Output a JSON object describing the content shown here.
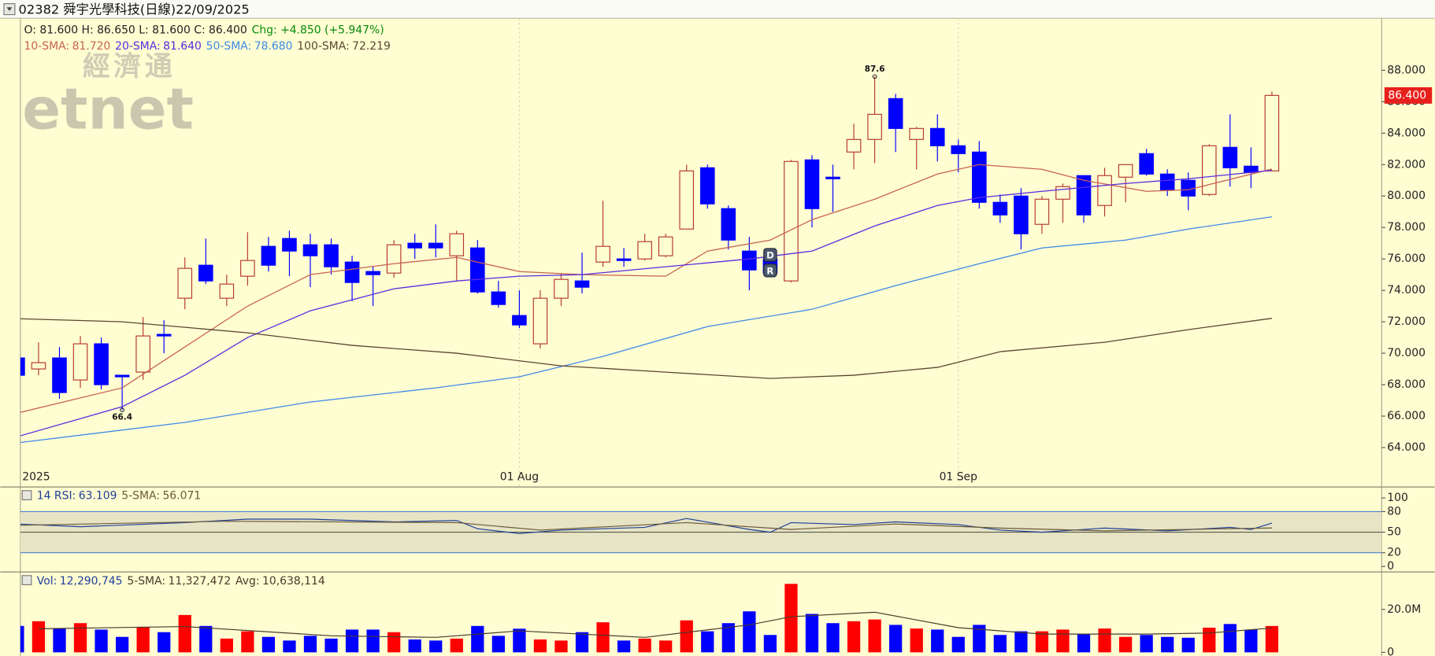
{
  "chart_data": [
    {
      "type": "candlestick",
      "title": "02382 舜宇光學科技(日線)22/09/2025",
      "ohlc_text": "O: 81.600 H: 86.650 L: 81.600 C: 86.400",
      "change_text": "Chg: +4.850 (+5.947%)",
      "change_color": "#0a8a0a",
      "watermark": [
        "經濟通",
        "etnet"
      ],
      "categories": [
        "2025",
        null,
        null,
        null,
        null,
        null,
        null,
        null,
        null,
        null,
        null,
        null,
        null,
        null,
        null,
        null,
        null,
        null,
        null,
        null,
        null,
        null,
        null,
        null,
        "01 Aug",
        null,
        null,
        null,
        null,
        null,
        null,
        null,
        null,
        null,
        null,
        null,
        null,
        null,
        null,
        null,
        null,
        null,
        null,
        null,
        null,
        "01 Sep",
        null,
        null,
        null,
        null,
        null,
        null,
        null,
        null,
        null,
        null,
        null,
        null,
        null,
        null,
        null
      ],
      "open": [
        69.7,
        69.0,
        69.7,
        68.3,
        70.6,
        68.6,
        68.8,
        71.2,
        73.5,
        75.6,
        73.5,
        74.9,
        76.8,
        77.3,
        76.9,
        76.9,
        75.8,
        75.2,
        75.1,
        77.0,
        77.0,
        76.2,
        76.7,
        73.9,
        72.4,
        70.6,
        73.5,
        74.6,
        75.8,
        76.0,
        76.0,
        76.2,
        77.9,
        81.8,
        79.2,
        76.5,
        76.0,
        74.6,
        82.3,
        81.2,
        82.8,
        83.6,
        86.2,
        83.6,
        84.3,
        83.2,
        82.8,
        79.6,
        80.0,
        78.2,
        79.8,
        81.3,
        79.4,
        81.2,
        82.7,
        81.4,
        81.0,
        80.1,
        83.1,
        81.9,
        81.6
      ],
      "high": [
        69.7,
        70.7,
        70.4,
        71.1,
        71.0,
        68.6,
        72.3,
        72.1,
        76.1,
        77.3,
        75.0,
        77.7,
        77.4,
        77.8,
        77.6,
        77.3,
        76.2,
        75.5,
        77.2,
        77.6,
        78.2,
        77.8,
        77.2,
        74.6,
        74.0,
        74.0,
        75.1,
        76.4,
        79.7,
        76.7,
        77.6,
        77.6,
        82.0,
        82.0,
        79.4,
        77.4,
        76.3,
        82.3,
        82.6,
        82.0,
        84.6,
        87.6,
        86.5,
        84.4,
        85.2,
        83.6,
        83.5,
        80.1,
        80.5,
        80.0,
        80.8,
        81.3,
        81.8,
        82.0,
        83.0,
        81.7,
        81.5,
        83.3,
        85.2,
        83.1,
        86.65
      ],
      "low": [
        68.6,
        68.6,
        67.1,
        67.8,
        67.7,
        66.4,
        68.3,
        70.0,
        72.8,
        74.4,
        73.0,
        74.3,
        75.2,
        74.9,
        74.2,
        75.0,
        73.3,
        73.0,
        74.8,
        76.0,
        76.1,
        74.6,
        73.8,
        72.9,
        71.6,
        70.3,
        73.0,
        73.8,
        75.5,
        75.5,
        75.9,
        76.1,
        77.9,
        79.2,
        76.6,
        74.0,
        74.9,
        74.5,
        78.0,
        79.0,
        81.7,
        82.1,
        82.8,
        81.7,
        82.2,
        81.5,
        79.2,
        78.3,
        76.6,
        77.6,
        78.3,
        78.3,
        78.7,
        79.6,
        81.3,
        80.0,
        79.1,
        80.0,
        80.6,
        80.5,
        81.6
      ],
      "close": [
        68.6,
        69.4,
        67.5,
        70.6,
        68.0,
        68.5,
        71.1,
        71.1,
        75.4,
        74.6,
        74.4,
        75.9,
        75.6,
        76.5,
        76.2,
        75.5,
        74.5,
        75.0,
        76.9,
        76.7,
        76.7,
        77.6,
        73.9,
        73.1,
        71.8,
        73.5,
        74.7,
        74.2,
        76.8,
        75.9,
        77.1,
        77.4,
        81.6,
        79.5,
        77.2,
        75.3,
        75.1,
        82.2,
        79.2,
        81.1,
        83.6,
        85.2,
        84.3,
        84.3,
        83.2,
        82.7,
        79.6,
        78.8,
        77.6,
        79.8,
        80.6,
        78.8,
        81.3,
        82.0,
        81.4,
        80.4,
        80.0,
        83.2,
        81.8,
        81.5,
        86.4
      ],
      "up_color": "#b5382f",
      "down_color": "#0000ff",
      "overlays": [
        {
          "name": "10-SMA:",
          "last_label": "81.720",
          "color": "#c8624f",
          "x": [
            0,
            5,
            8,
            11,
            14,
            18,
            21,
            24,
            27,
            31,
            33,
            36,
            38,
            41,
            44,
            46,
            49,
            51,
            54,
            56,
            60
          ],
          "values": [
            66.2,
            67.8,
            70.4,
            73.0,
            75.0,
            75.7,
            76.1,
            75.2,
            75.0,
            74.9,
            76.5,
            77.2,
            78.5,
            79.8,
            81.4,
            82.0,
            81.7,
            81.0,
            80.3,
            80.4,
            81.72
          ]
        },
        {
          "name": "20-SMA:",
          "last_label": "81.640",
          "color": "#5a2be0",
          "x": [
            0,
            5,
            8,
            11,
            14,
            18,
            21,
            24,
            27,
            31,
            35,
            38,
            41,
            44,
            46,
            49,
            53,
            56,
            60
          ],
          "values": [
            64.7,
            66.6,
            68.6,
            71.0,
            72.7,
            74.1,
            74.6,
            74.9,
            75.0,
            75.5,
            76.0,
            76.5,
            78.1,
            79.4,
            79.9,
            80.3,
            80.8,
            81.1,
            81.64
          ]
        },
        {
          "name": "50-SMA:",
          "last_label": "78.680",
          "color": "#3d8ae8",
          "x": [
            0,
            8,
            14,
            20,
            24,
            28,
            33,
            38,
            42,
            46,
            49,
            53,
            56,
            60
          ],
          "values": [
            64.3,
            65.6,
            66.9,
            67.8,
            68.5,
            69.8,
            71.7,
            72.8,
            74.3,
            75.7,
            76.7,
            77.2,
            77.9,
            78.68
          ]
        },
        {
          "name": "100-SMA:",
          "last_label": "72.219",
          "color": "#5a4632",
          "x": [
            0,
            5,
            11,
            16,
            21,
            26,
            31,
            36,
            40,
            44,
            47,
            52,
            56,
            60
          ],
          "values": [
            72.2,
            72.0,
            71.3,
            70.5,
            70.0,
            69.2,
            68.8,
            68.4,
            68.6,
            69.1,
            70.1,
            70.7,
            71.5,
            72.219
          ]
        }
      ],
      "annotations": [
        {
          "x": 41,
          "value": 87.6
        },
        {
          "x": 5,
          "value": 66.4
        }
      ],
      "events": [
        {
          "x": 36,
          "label": "D"
        },
        {
          "x": 36,
          "label": "R"
        }
      ],
      "last_price": {
        "value": 86.4,
        "label": "86.400"
      },
      "ylim": [
        61.55,
        91.31
      ],
      "yticks": [
        {
          "value": 64,
          "label": "64.000"
        },
        {
          "value": 66,
          "label": "66.000"
        },
        {
          "value": 68,
          "label": "68.000"
        },
        {
          "value": 70,
          "label": "70.000"
        },
        {
          "value": 72,
          "label": "72.000"
        },
        {
          "value": 74,
          "label": "74.000"
        },
        {
          "value": 76,
          "label": "76.000"
        },
        {
          "value": 78,
          "label": "78.000"
        },
        {
          "value": 80,
          "label": "80.000"
        },
        {
          "value": 82,
          "label": "82.000"
        },
        {
          "value": 84,
          "label": "84.000"
        },
        {
          "value": 86,
          "label": "86.000"
        },
        {
          "value": 88,
          "label": "88.000"
        }
      ]
    },
    {
      "type": "line",
      "series": [
        {
          "name": "14 RSI:",
          "last_label": "63.109",
          "color": "#1f3f9a",
          "x": [
            0,
            3,
            8,
            11,
            14,
            18,
            21,
            22,
            24,
            26,
            30,
            32,
            35,
            36,
            37,
            40,
            42,
            45,
            47,
            49,
            52,
            55,
            58,
            59,
            60
          ],
          "values": [
            62,
            58,
            64,
            69,
            69,
            65,
            67,
            55,
            48,
            53,
            57,
            70,
            54,
            50,
            64,
            61,
            65,
            61,
            53,
            50,
            56,
            52,
            57,
            54,
            63.109
          ]
        },
        {
          "name": "5-SMA:",
          "last_label": "56.071",
          "color": "#6b5a3a",
          "x": [
            0,
            10,
            21,
            25,
            32,
            37,
            42,
            47,
            52,
            60
          ],
          "values": [
            60,
            66,
            64,
            53,
            64,
            54,
            62,
            56,
            52,
            56.071
          ]
        }
      ],
      "band": [
        20,
        80
      ],
      "ylim": [
        -6.7,
        113.3
      ],
      "yticks": [
        100,
        80,
        50,
        20,
        0
      ]
    },
    {
      "type": "bar",
      "name": "Vol:",
      "last_label": "12,290,745",
      "sma": {
        "name": "5-SMA:",
        "last_label": "11,327,472",
        "color": "#4a3a2a",
        "x": [
          1,
          8,
          15,
          20,
          24,
          30,
          35,
          37,
          41,
          45,
          49,
          54,
          57,
          60
        ],
        "values": [
          11000000,
          12000000,
          7700000,
          7000000,
          10000000,
          7000000,
          12800000,
          16600000,
          18700000,
          11500000,
          8500000,
          8500000,
          9000000,
          11327472
        ]
      },
      "avg": {
        "name": "Avg:",
        "last_label": "10,638,114"
      },
      "values": [
        12300000,
        14500000,
        11000000,
        13600000,
        10600000,
        7200000,
        11900000,
        9400000,
        17400000,
        12300000,
        6400000,
        9800000,
        7200000,
        5500000,
        7700000,
        6400000,
        10600000,
        10600000,
        9400000,
        6000000,
        5500000,
        6400000,
        12300000,
        7700000,
        11000000,
        6000000,
        5500000,
        9400000,
        14000000,
        5500000,
        6400000,
        5500000,
        14900000,
        9800000,
        13600000,
        19100000,
        8100000,
        31900000,
        17900000,
        13600000,
        14500000,
        15300000,
        12800000,
        11100000,
        10600000,
        7200000,
        12800000,
        8100000,
        9800000,
        9800000,
        10600000,
        8500000,
        11100000,
        7200000,
        8100000,
        7200000,
        6800000,
        11500000,
        13200000,
        10600000,
        12290745
      ],
      "up_color": "#ff0000",
      "down_color": "#0000ff",
      "ylim": [
        -1700000,
        36600000
      ],
      "yticks": [
        {
          "value": 20000000,
          "label": "20.0M"
        },
        0
      ]
    }
  ]
}
